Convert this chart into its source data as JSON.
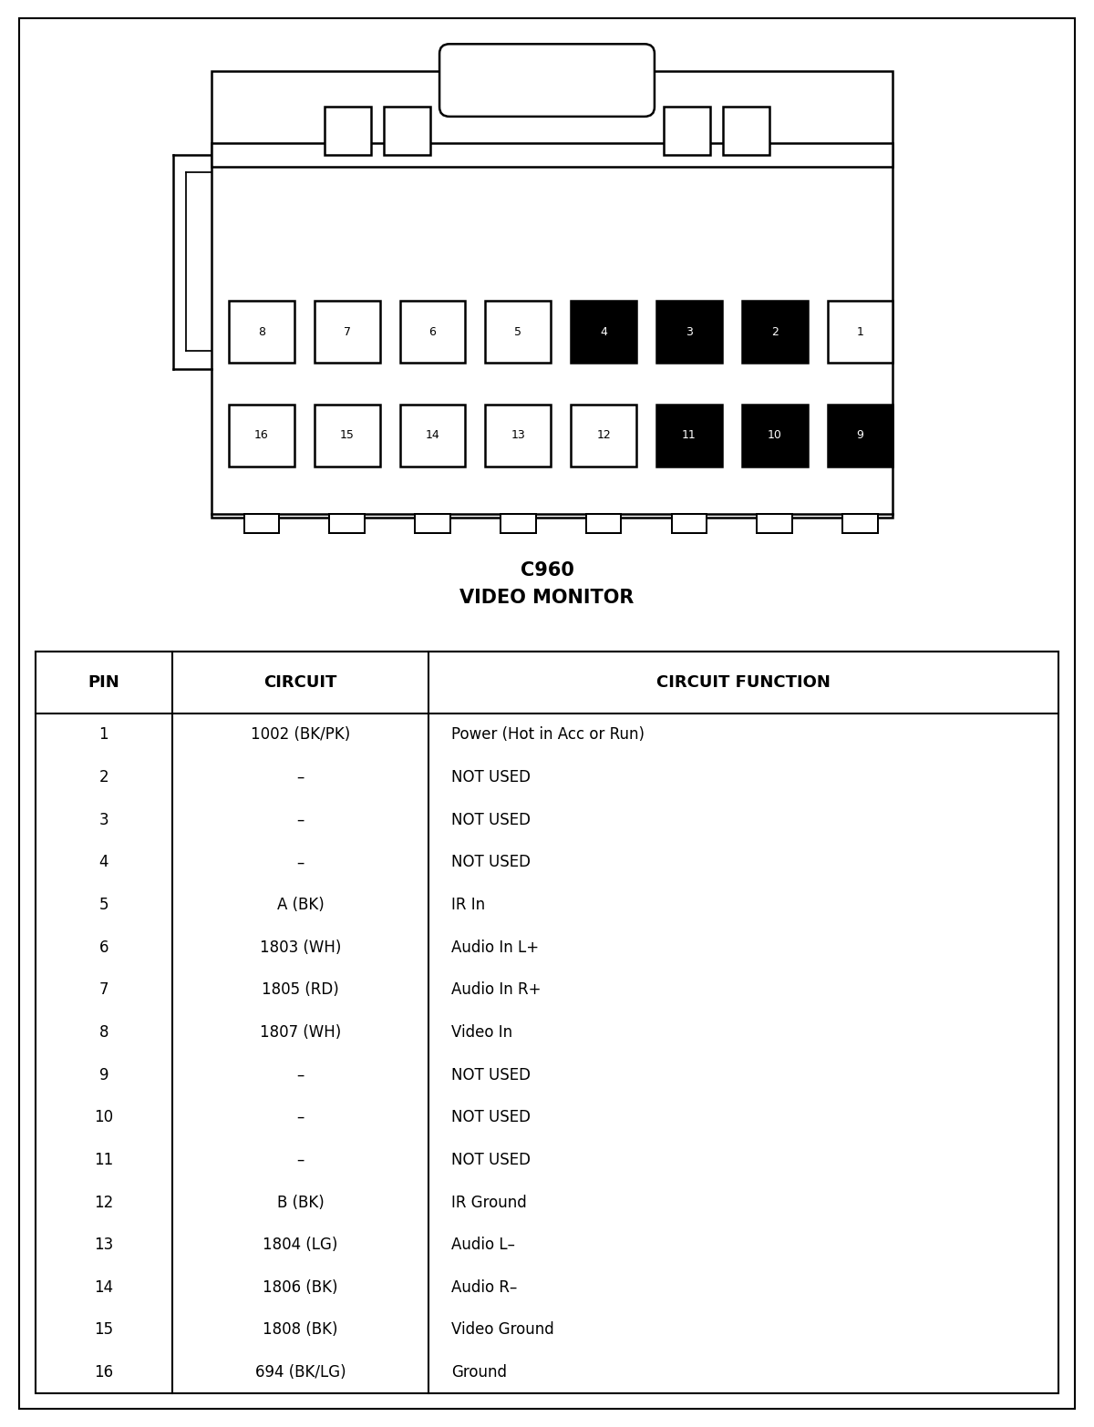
{
  "title1": "C960",
  "title2": "VIDEO MONITOR",
  "table_header": [
    "PIN",
    "CIRCUIT",
    "CIRCUIT FUNCTION"
  ],
  "rows": [
    [
      "1",
      "1002 (BK/PK)",
      "Power (Hot in Acc or Run)"
    ],
    [
      "2",
      "–",
      "NOT USED"
    ],
    [
      "3",
      "–",
      "NOT USED"
    ],
    [
      "4",
      "–",
      "NOT USED"
    ],
    [
      "5",
      "A (BK)",
      "IR In"
    ],
    [
      "6",
      "1803 (WH)",
      "Audio In L+"
    ],
    [
      "7",
      "1805 (RD)",
      "Audio In R+"
    ],
    [
      "8",
      "1807 (WH)",
      "Video In"
    ],
    [
      "9",
      "–",
      "NOT USED"
    ],
    [
      "10",
      "–",
      "NOT USED"
    ],
    [
      "11",
      "–",
      "NOT USED"
    ],
    [
      "12",
      "B (BK)",
      "IR Ground"
    ],
    [
      "13",
      "1804 (LG)",
      "Audio L–"
    ],
    [
      "14",
      "1806 (BK)",
      "Audio R–"
    ],
    [
      "15",
      "1808 (BK)",
      "Video Ground"
    ],
    [
      "16",
      "694 (BK/LG)",
      "Ground"
    ]
  ],
  "pin_row1": [
    8,
    7,
    6,
    5,
    4,
    3,
    2,
    1
  ],
  "pin_row2": [
    16,
    15,
    14,
    13,
    12,
    11,
    10,
    9
  ],
  "black_pins_row1": [
    4,
    3,
    2
  ],
  "black_pins_row2": [
    11,
    10,
    9
  ],
  "lw": 1.8
}
